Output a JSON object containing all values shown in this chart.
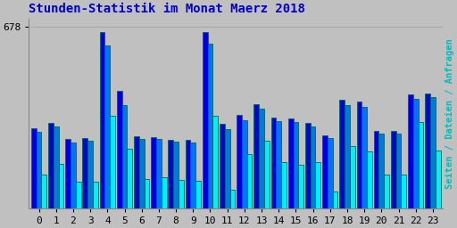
{
  "title": "Stunden-Statistik im Monat Maerz 2018",
  "title_color": "#0000CC",
  "ylabel_right": "Seiten / Dateien / Anfragen",
  "ylabel_right_colors": [
    "#008888",
    "#0000FF",
    "#00CCCC"
  ],
  "background_color": "#C0C0C0",
  "bar_width": 0.3,
  "hours": [
    0,
    1,
    2,
    3,
    4,
    5,
    6,
    7,
    8,
    9,
    10,
    11,
    12,
    13,
    14,
    15,
    16,
    17,
    18,
    19,
    20,
    21,
    22,
    23
  ],
  "seiten": [
    300,
    320,
    260,
    265,
    660,
    440,
    270,
    268,
    258,
    258,
    660,
    315,
    350,
    390,
    340,
    335,
    320,
    275,
    405,
    400,
    290,
    290,
    425,
    430
  ],
  "dateien": [
    288,
    308,
    248,
    252,
    610,
    385,
    260,
    260,
    250,
    248,
    615,
    298,
    330,
    372,
    325,
    323,
    308,
    265,
    386,
    380,
    280,
    280,
    410,
    418
  ],
  "anfragen": [
    128,
    168,
    100,
    100,
    348,
    225,
    112,
    118,
    106,
    104,
    348,
    72,
    202,
    252,
    172,
    165,
    172,
    65,
    232,
    215,
    128,
    128,
    322,
    218
  ],
  "color_seiten": "#0000DD",
  "color_dateien": "#0077EE",
  "color_anfragen": "#00EEFF",
  "outline_color": "#006655",
  "grid_color": "#AAAAAA",
  "ylim": [
    0,
    710
  ],
  "ytick_val": 678,
  "title_fontsize": 10,
  "tick_fontsize": 8
}
